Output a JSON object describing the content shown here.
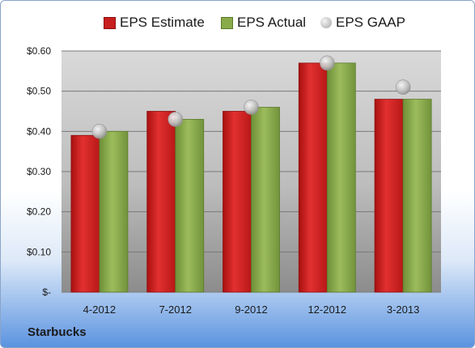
{
  "company": "Starbucks",
  "colors": {
    "estimate": "#d42020",
    "actual": "#8aab4a",
    "gaap": "#b9b9b9"
  },
  "chart_data": {
    "type": "bar",
    "title": "",
    "xlabel": "",
    "ylabel": "",
    "categories": [
      "4-2012",
      "7-2012",
      "9-2012",
      "12-2012",
      "3-2013"
    ],
    "series": [
      {
        "name": "EPS Estimate",
        "kind": "bar",
        "values": [
          0.39,
          0.45,
          0.45,
          0.57,
          0.48
        ]
      },
      {
        "name": "EPS Actual",
        "kind": "bar",
        "values": [
          0.4,
          0.43,
          0.46,
          0.57,
          0.48
        ]
      },
      {
        "name": "EPS GAAP",
        "kind": "marker",
        "values": [
          0.4,
          0.43,
          0.46,
          0.57,
          0.51
        ]
      }
    ],
    "ylim": [
      0,
      0.6
    ],
    "yticks": [
      0,
      0.1,
      0.2,
      0.3,
      0.4,
      0.5,
      0.6
    ],
    "ytick_labels": [
      "$-",
      "$0.10",
      "$0.20",
      "$0.30",
      "$0.40",
      "$0.50",
      "$0.60"
    ],
    "grid": true,
    "legend_position": "top"
  }
}
